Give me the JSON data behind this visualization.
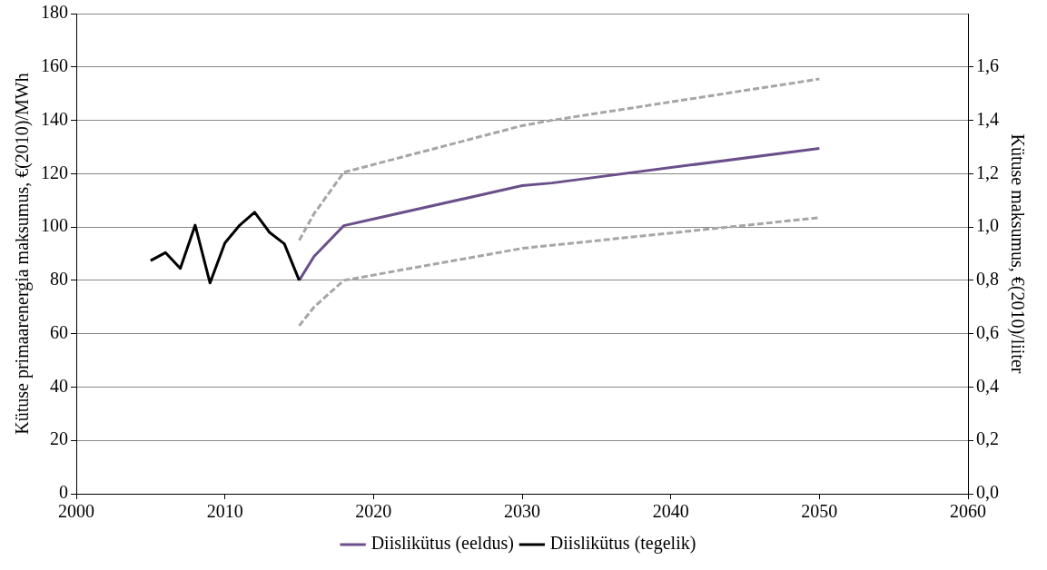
{
  "chart_data": {
    "type": "line",
    "xlabel": null,
    "ylabel": "Kütuse primaarenergia maksumus, €(2010)/MWh",
    "y2label": "Kütuse maksumus, €(2010)/liiter",
    "xlim": [
      2000,
      2060
    ],
    "xticks": [
      2000,
      2010,
      2020,
      2030,
      2040,
      2050,
      2060
    ],
    "ylim": [
      0,
      180
    ],
    "yticks": [
      0,
      20,
      40,
      60,
      80,
      100,
      120,
      140,
      160,
      180
    ],
    "y2lim": [
      0,
      1.8
    ],
    "y2ticks": [
      {
        "value": 0,
        "label": "0,0"
      },
      {
        "value": 0.2,
        "label": "0,2"
      },
      {
        "value": 0.4,
        "label": "0,4"
      },
      {
        "value": 0.6,
        "label": "0,6"
      },
      {
        "value": 0.8,
        "label": "0,8"
      },
      {
        "value": 1,
        "label": "1,0"
      },
      {
        "value": 1.2,
        "label": "1,2"
      },
      {
        "value": 1.4,
        "label": "1,4"
      },
      {
        "value": 1.6,
        "label": "1,6"
      }
    ],
    "grid": "y",
    "legend": "bottom",
    "marker": "none",
    "series": [
      {
        "color": "#a6a6a6",
        "line_style": "dashed",
        "x": [
          2015,
          2016,
          2018,
          2030,
          2032,
          2050
        ],
        "values": [
          95,
          105,
          120.5,
          138,
          140,
          155.5
        ]
      },
      {
        "color": "#a6a6a6",
        "line_style": "dashed",
        "x": [
          2015,
          2016,
          2018,
          2030,
          2050
        ],
        "values": [
          63,
          70,
          80,
          92,
          103.5
        ]
      },
      {
        "name": "Diislikütus (eeldus)",
        "color": "#6a4f8a",
        "line_style": "solid",
        "x": [
          2015,
          2016,
          2018,
          2020,
          2030,
          2032,
          2050
        ],
        "values": [
          80,
          89,
          100.5,
          103,
          115.5,
          116.5,
          129.5
        ]
      },
      {
        "name": "Diislikütus (tegelik)",
        "color": "#000000",
        "line_style": "solid",
        "x": [
          2005,
          2006,
          2007,
          2008,
          2009,
          2010,
          2011,
          2012,
          2013,
          2014,
          2015
        ],
        "values": [
          87.4,
          90.4,
          84.5,
          100.7,
          79,
          94,
          100.7,
          105.5,
          98,
          93.7,
          80
        ]
      }
    ]
  }
}
